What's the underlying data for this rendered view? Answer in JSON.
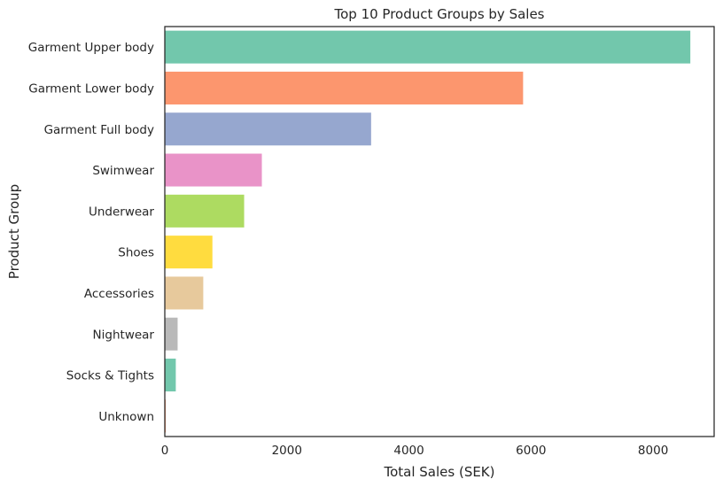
{
  "chart_data": {
    "type": "bar",
    "orientation": "horizontal",
    "title": "Top 10 Product Groups by Sales",
    "xlabel": "Total Sales (SEK)",
    "ylabel": "Product Group",
    "categories": [
      "Garment Upper body",
      "Garment Lower body",
      "Garment Full body",
      "Swimwear",
      "Underwear",
      "Shoes",
      "Accessories",
      "Nightwear",
      "Socks & Tights",
      "Unknown"
    ],
    "values": [
      8610,
      5870,
      3380,
      1590,
      1300,
      780,
      630,
      210,
      180,
      15
    ],
    "colors": [
      "#66c2a5",
      "#fc8d62",
      "#8da0cb",
      "#e78ac3",
      "#a6d854",
      "#ffd92f",
      "#e5c494",
      "#b3b3b3",
      "#66c2a5",
      "#fc8d62"
    ],
    "xlim": [
      0,
      9000
    ],
    "xticks": [
      0,
      2000,
      4000,
      6000,
      8000
    ],
    "xtick_labels": [
      "0",
      "2000",
      "4000",
      "6000",
      "8000"
    ],
    "grid": false,
    "legend": "none"
  }
}
